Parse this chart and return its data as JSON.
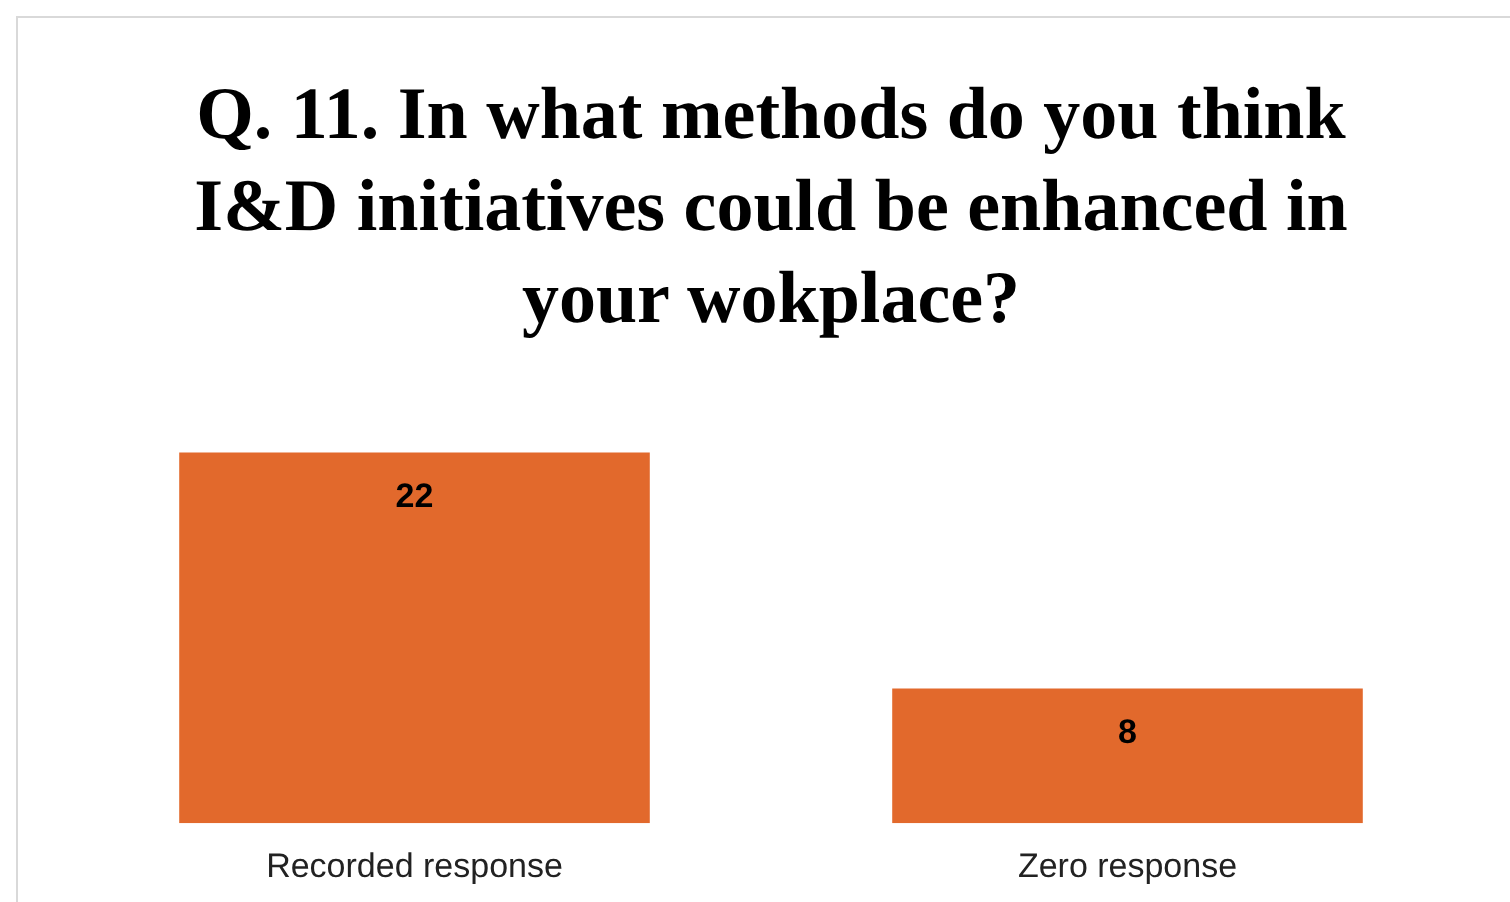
{
  "chart_data": {
    "type": "bar",
    "title": "Q. 11. In what methods do you think I&D initiatives could be enhanced in your wokplace?",
    "categories": [
      "Recorded response",
      "Zero response"
    ],
    "values": [
      22,
      8
    ],
    "color": "#e2692c",
    "data_labels": true,
    "grid": false,
    "legend": false
  }
}
